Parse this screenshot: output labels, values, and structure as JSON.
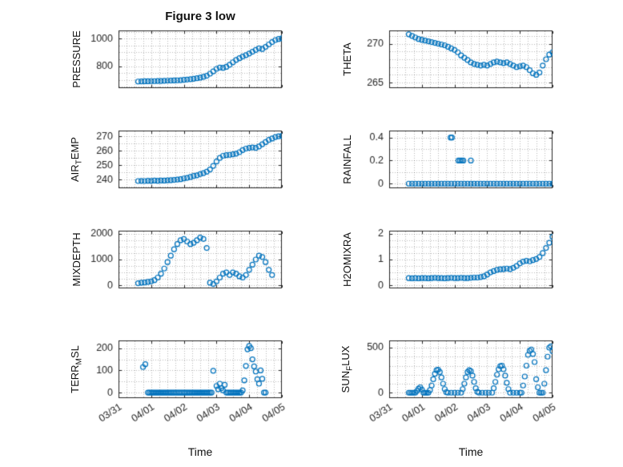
{
  "figure": {
    "title": "Figure 3 low",
    "xlabel": "Time",
    "marker": "o",
    "marker_color": "#0072BD",
    "axis_color": "#262626",
    "grid_color": "rgba(0,0,0,0.28)",
    "xlim": [
      0,
      5
    ],
    "xminor_step": 0.25,
    "xticks": [
      0,
      1,
      2,
      3,
      4,
      5
    ],
    "xticklabels": [
      "03/31",
      "04/01",
      "04/02",
      "04/03",
      "04/04",
      "04/05"
    ]
  },
  "chart_data": [
    {
      "id": "pressure",
      "type": "scatter",
      "row": 0,
      "col": 0,
      "show_xticklabels": false,
      "ylabel_parts": [
        {
          "text": "PRESSURE",
          "sub": false
        }
      ],
      "ylim": [
        640,
        1060
      ],
      "yticks": [
        800,
        1000
      ],
      "yminor_step": 50,
      "x_start": 0.6,
      "x_step": 0.1,
      "y": [
        688,
        689,
        690,
        690,
        691,
        691,
        692,
        692,
        693,
        694,
        695,
        696,
        697,
        698,
        700,
        702,
        705,
        708,
        712,
        716,
        722,
        730,
        745,
        762,
        780,
        790,
        788,
        795,
        810,
        828,
        845,
        858,
        870,
        880,
        892,
        905,
        918,
        930,
        925,
        940,
        958,
        975,
        990,
        998,
        1002
      ]
    },
    {
      "id": "theta",
      "type": "scatter",
      "row": 0,
      "col": 1,
      "show_xticklabels": false,
      "ylabel_parts": [
        {
          "text": "THETA",
          "sub": false
        }
      ],
      "ylim": [
        264.3,
        271.7
      ],
      "yticks": [
        265,
        270
      ],
      "yminor_step": 1,
      "x_start": 0.6,
      "x_step": 0.1,
      "y": [
        271.2,
        271,
        270.8,
        270.6,
        270.5,
        270.4,
        270.3,
        270.2,
        270.1,
        270,
        269.9,
        269.8,
        269.6,
        269.4,
        269.2,
        268.9,
        268.5,
        268.2,
        267.9,
        267.6,
        267.4,
        267.3,
        267.2,
        267.3,
        267.2,
        267.4,
        267.6,
        267.7,
        267.6,
        267.5,
        267.6,
        267.4,
        267.2,
        267,
        267.1,
        267.2,
        267,
        266.6,
        266.2,
        266,
        266.3,
        267.2,
        268,
        268.6,
        268.9
      ]
    },
    {
      "id": "airtemp",
      "type": "scatter",
      "row": 1,
      "col": 0,
      "show_xticklabels": false,
      "ylabel_parts": [
        {
          "text": "AIR",
          "sub": false
        },
        {
          "text": "T",
          "sub": true
        },
        {
          "text": "EMP",
          "sub": false
        }
      ],
      "ylim": [
        234,
        274
      ],
      "yticks": [
        240,
        250,
        260,
        270
      ],
      "yminor_step": 5,
      "x_start": 0.6,
      "x_step": 0.1,
      "y": [
        239,
        239.1,
        239,
        239.2,
        239.1,
        239.3,
        239.2,
        239.4,
        239.3,
        239.5,
        239.6,
        239.8,
        240,
        240.3,
        240.8,
        241.2,
        241.8,
        242.5,
        243,
        243.8,
        244.5,
        245.5,
        247,
        249.5,
        252.5,
        255,
        256.5,
        257,
        257.2,
        257.5,
        258,
        259,
        260.5,
        261.5,
        262,
        262.3,
        262,
        263,
        264.5,
        266,
        267.5,
        268.5,
        269.5,
        270,
        270.3
      ]
    },
    {
      "id": "rainfall",
      "type": "scatter",
      "row": 1,
      "col": 1,
      "show_xticklabels": false,
      "ylabel_parts": [
        {
          "text": "RAINFALL",
          "sub": false
        }
      ],
      "ylim": [
        -0.04,
        0.46
      ],
      "yticks": [
        0,
        0.2,
        0.4
      ],
      "yminor_step": 0.1,
      "x": [
        0.6,
        0.7,
        0.8,
        0.9,
        1,
        1.1,
        1.2,
        1.3,
        1.4,
        1.5,
        1.6,
        1.7,
        1.8,
        1.9,
        2,
        2.1,
        2.2,
        2.3,
        2.4,
        2.5,
        2.6,
        2.7,
        2.8,
        2.9,
        3,
        3.1,
        3.2,
        3.3,
        3.4,
        3.5,
        3.6,
        3.7,
        3.8,
        3.9,
        4,
        4.1,
        4.2,
        4.3,
        4.4,
        4.5,
        4.6,
        4.7,
        4.8,
        4.9,
        5,
        1.88,
        1.92,
        2.12,
        2.17,
        2.22,
        2.27,
        2.5
      ],
      "y": [
        0,
        0,
        0,
        0,
        0,
        0,
        0,
        0,
        0,
        0,
        0,
        0,
        0,
        0,
        0,
        0,
        0,
        0,
        0,
        0,
        0,
        0,
        0,
        0,
        0,
        0,
        0,
        0,
        0,
        0,
        0,
        0,
        0,
        0,
        0,
        0,
        0,
        0,
        0,
        0,
        0,
        0,
        0,
        0,
        0,
        0.4,
        0.4,
        0.2,
        0.2,
        0.2,
        0.2,
        0.2
      ]
    },
    {
      "id": "mixdepth",
      "type": "scatter",
      "row": 2,
      "col": 0,
      "show_xticklabels": false,
      "ylabel_parts": [
        {
          "text": "MIXDEPTH",
          "sub": false
        }
      ],
      "ylim": [
        -120,
        2120
      ],
      "yticks": [
        0,
        1000,
        2000
      ],
      "yminor_step": 250,
      "x_start": 0.6,
      "x_step": 0.1,
      "y": [
        80,
        100,
        110,
        130,
        150,
        200,
        300,
        450,
        650,
        900,
        1150,
        1400,
        1600,
        1750,
        1800,
        1700,
        1600,
        1650,
        1750,
        1850,
        1800,
        1450,
        100,
        50,
        150,
        300,
        450,
        500,
        400,
        500,
        450,
        350,
        300,
        400,
        600,
        800,
        1000,
        1150,
        1100,
        900,
        600,
        400
      ]
    },
    {
      "id": "h2omixra",
      "type": "scatter",
      "row": 2,
      "col": 1,
      "show_xticklabels": false,
      "ylabel_parts": [
        {
          "text": "H2OMIXRA",
          "sub": false
        }
      ],
      "ylim": [
        -0.12,
        2.12
      ],
      "yticks": [
        0,
        1,
        2
      ],
      "yminor_step": 0.25,
      "x_start": 0.6,
      "x_step": 0.1,
      "y": [
        0.28,
        0.27,
        0.28,
        0.27,
        0.28,
        0.28,
        0.27,
        0.28,
        0.29,
        0.28,
        0.28,
        0.27,
        0.28,
        0.29,
        0.28,
        0.28,
        0.29,
        0.28,
        0.28,
        0.29,
        0.3,
        0.3,
        0.32,
        0.35,
        0.42,
        0.5,
        0.55,
        0.6,
        0.62,
        0.63,
        0.65,
        0.63,
        0.68,
        0.75,
        0.85,
        0.92,
        0.95,
        0.93,
        0.98,
        1.02,
        1.1,
        1.25,
        1.45,
        1.65,
        1.88
      ]
    },
    {
      "id": "terrmsl",
      "type": "scatter",
      "row": 3,
      "col": 0,
      "show_xticklabels": true,
      "ylabel_parts": [
        {
          "text": "TERR",
          "sub": false
        },
        {
          "text": "M",
          "sub": true
        },
        {
          "text": "SL",
          "sub": false
        }
      ],
      "ylim": [
        -25,
        235
      ],
      "yticks": [
        0,
        100,
        200
      ],
      "yminor_step": 50,
      "x": [
        0.75,
        0.82,
        0.9,
        0.95,
        1,
        1.05,
        1.1,
        1.15,
        1.2,
        1.25,
        1.3,
        1.35,
        1.4,
        1.45,
        1.5,
        1.55,
        1.6,
        1.65,
        1.7,
        1.75,
        1.8,
        1.85,
        1.9,
        1.95,
        2,
        2.05,
        2.1,
        2.15,
        2.2,
        2.25,
        2.3,
        2.35,
        2.4,
        2.45,
        2.5,
        2.55,
        2.6,
        2.65,
        2.7,
        2.75,
        2.8,
        2.85,
        2.9,
        3,
        3.05,
        3.1,
        3.15,
        3.2,
        3.25,
        3.3,
        3.35,
        3.4,
        3.45,
        3.5,
        3.55,
        3.6,
        3.65,
        3.7,
        3.75,
        3.8,
        3.85,
        3.9,
        3.95,
        4,
        4.05,
        4.1,
        4.15,
        4.2,
        4.25,
        4.3,
        4.35,
        4.4,
        4.45,
        4.5
      ],
      "y": [
        115,
        128,
        0,
        0,
        0,
        0,
        0,
        0,
        0,
        0,
        0,
        0,
        0,
        0,
        0,
        0,
        0,
        0,
        0,
        0,
        0,
        0,
        0,
        0,
        0,
        0,
        0,
        0,
        0,
        0,
        0,
        0,
        0,
        0,
        0,
        0,
        0,
        0,
        0,
        0,
        0,
        0,
        98,
        30,
        15,
        40,
        20,
        10,
        35,
        0,
        0,
        0,
        0,
        0,
        0,
        0,
        0,
        0,
        0,
        10,
        55,
        120,
        195,
        210,
        200,
        150,
        118,
        95,
        60,
        40,
        100,
        62,
        0,
        0
      ]
    },
    {
      "id": "sunflux",
      "type": "scatter",
      "row": 3,
      "col": 1,
      "show_xticklabels": true,
      "ylabel_parts": [
        {
          "text": "SUN",
          "sub": false
        },
        {
          "text": "F",
          "sub": true
        },
        {
          "text": "LUX",
          "sub": false
        }
      ],
      "ylim": [
        -60,
        580
      ],
      "yticks": [
        0,
        500
      ],
      "yminor_step": 100,
      "x": [
        0.6,
        0.65,
        0.7,
        0.75,
        0.8,
        0.85,
        0.9,
        0.95,
        1,
        1.05,
        1.1,
        1.15,
        1.2,
        1.25,
        1.3,
        1.35,
        1.4,
        1.45,
        1.5,
        1.55,
        1.6,
        1.65,
        1.7,
        1.75,
        1.8,
        1.9,
        2,
        2.1,
        2.2,
        2.25,
        2.3,
        2.35,
        2.4,
        2.45,
        2.5,
        2.55,
        2.6,
        2.65,
        2.7,
        2.75,
        2.85,
        2.95,
        3.05,
        3.15,
        3.2,
        3.25,
        3.3,
        3.35,
        3.4,
        3.45,
        3.5,
        3.55,
        3.6,
        3.65,
        3.7,
        3.8,
        3.9,
        4,
        4.05,
        4.1,
        4.15,
        4.2,
        4.25,
        4.3,
        4.35,
        4.4,
        4.45,
        4.5,
        4.55,
        4.6,
        4.65,
        4.7,
        4.75,
        4.8,
        4.85,
        4.9,
        4.95,
        5
      ],
      "y": [
        0,
        0,
        0,
        0,
        0,
        20,
        45,
        60,
        35,
        0,
        0,
        0,
        0,
        30,
        80,
        150,
        210,
        250,
        255,
        230,
        170,
        100,
        40,
        5,
        0,
        0,
        0,
        0,
        0,
        40,
        100,
        170,
        230,
        250,
        240,
        190,
        120,
        50,
        10,
        0,
        0,
        0,
        0,
        0,
        50,
        120,
        200,
        260,
        295,
        300,
        260,
        190,
        110,
        40,
        0,
        0,
        0,
        0,
        0,
        80,
        180,
        300,
        420,
        465,
        480,
        430,
        340,
        150,
        60,
        0,
        0,
        0,
        100,
        250,
        400,
        500,
        515,
        460
      ]
    }
  ]
}
